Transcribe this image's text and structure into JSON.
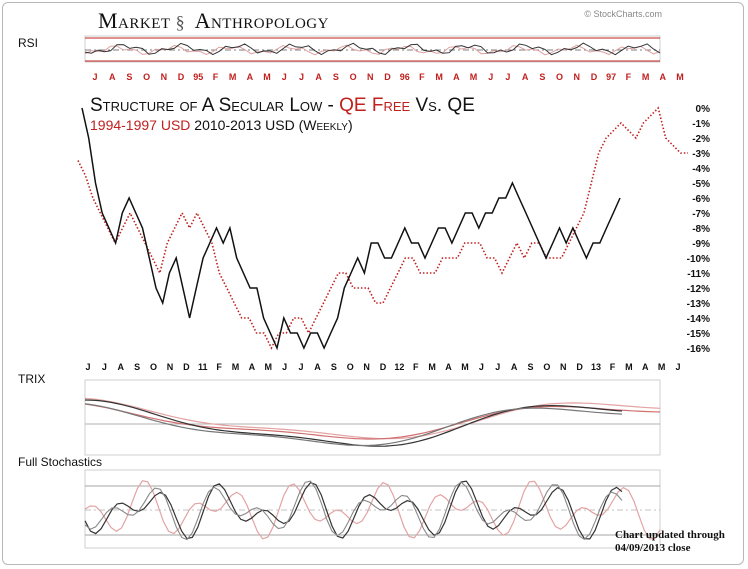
{
  "header": {
    "brand_left": "Market",
    "brand_right": "Anthropology",
    "source": "© StockCharts.com"
  },
  "panels": {
    "rsi_label": "RSI",
    "trix_label": "TRIX",
    "stoch_label": "Full Stochastics"
  },
  "title": {
    "line1_a": "Structure of A Secular Low - ",
    "line1_b": "QE Free",
    "line1_c": " Vs. QE",
    "line2_a": "1994-1997 USD",
    "line2_b": " 2010-2013 USD (Weekly)"
  },
  "footer": {
    "note_line1": "Chart updated through",
    "note_line2": "04/09/2013 close"
  },
  "colors": {
    "black_series": "#111111",
    "red_series": "#c0201e",
    "grid": "#999999"
  },
  "chart_data": {
    "type": "line",
    "title": "Structure of A Secular Low - QE Free Vs. QE",
    "subtitle": "1994-1997 USD 2010-2013 USD (Weekly)",
    "top_axis_labels": [
      "J",
      "A",
      "S",
      "O",
      "N",
      "D",
      "95",
      "F",
      "M",
      "A",
      "M",
      "J",
      "J",
      "A",
      "S",
      "O",
      "N",
      "D",
      "96",
      "F",
      "M",
      "A",
      "M",
      "J",
      "J",
      "A",
      "S",
      "O",
      "N",
      "D",
      "97",
      "F",
      "M",
      "A",
      "M"
    ],
    "bottom_axis_labels": [
      "J",
      "J",
      "A",
      "S",
      "O",
      "N",
      "D",
      "11",
      "F",
      "M",
      "A",
      "M",
      "J",
      "J",
      "A",
      "S",
      "O",
      "N",
      "D",
      "12",
      "F",
      "M",
      "A",
      "M",
      "J",
      "J",
      "A",
      "S",
      "O",
      "N",
      "D",
      "13",
      "F",
      "M",
      "A",
      "M",
      "J"
    ],
    "y_axis_ticks": [
      "0%",
      "-1%",
      "-2%",
      "-3%",
      "-4%",
      "-5%",
      "-6%",
      "-7%",
      "-8%",
      "-9%",
      "-10%",
      "-11%",
      "-12%",
      "-13%",
      "-14%",
      "-15%",
      "-16%"
    ],
    "ylim": [
      -16,
      0
    ],
    "series": [
      {
        "name": "2010-2013 USD",
        "color": "#111111",
        "style": "solid",
        "values": [
          0,
          -2,
          -5,
          -7,
          -8,
          -9,
          -7,
          -6,
          -7,
          -8,
          -10,
          -12,
          -13,
          -11,
          -10,
          -12,
          -14,
          -12,
          -10,
          -9,
          -8,
          -9,
          -8,
          -10,
          -11,
          -12,
          -12,
          -14,
          -15,
          -16,
          -14,
          -15,
          -15,
          -16,
          -15,
          -15,
          -16,
          -15,
          -14,
          -12,
          -11,
          -10,
          -11,
          -9,
          -9,
          -10,
          -10,
          -9,
          -8,
          -9,
          -9,
          -10,
          -9,
          -8,
          -8,
          -9,
          -8,
          -7,
          -7,
          -8,
          -7,
          -7,
          -6,
          -6,
          -5,
          -6,
          -7,
          -8,
          -9,
          -10,
          -9,
          -8,
          -9,
          -8,
          -9,
          -10,
          -9,
          -9,
          -8,
          -7,
          -6
        ]
      },
      {
        "name": "1994-1997 USD",
        "color": "#c0201e",
        "style": "dotted",
        "values": [
          -3.5,
          -4.5,
          -6,
          -7,
          -8,
          -9,
          -8,
          -7,
          -8,
          -9,
          -10,
          -11,
          -9,
          -8,
          -7,
          -8,
          -7,
          -8,
          -9,
          -11,
          -12,
          -13,
          -14,
          -14,
          -15,
          -15,
          -16,
          -15,
          -15,
          -14,
          -14,
          -15,
          -14,
          -13,
          -12,
          -11,
          -11,
          -12,
          -12,
          -12,
          -13,
          -13,
          -12,
          -11,
          -10,
          -10,
          -11,
          -11,
          -11,
          -10,
          -10,
          -10,
          -9,
          -9,
          -9,
          -10,
          -10,
          -11,
          -10,
          -9,
          -10,
          -9,
          -9,
          -10,
          -10,
          -10,
          -9,
          -8,
          -7,
          -5,
          -3,
          -2,
          -1.5,
          -1,
          -1.5,
          -2,
          -1,
          -0.5,
          0,
          -2,
          -2.5,
          -3,
          -3
        ]
      }
    ]
  }
}
